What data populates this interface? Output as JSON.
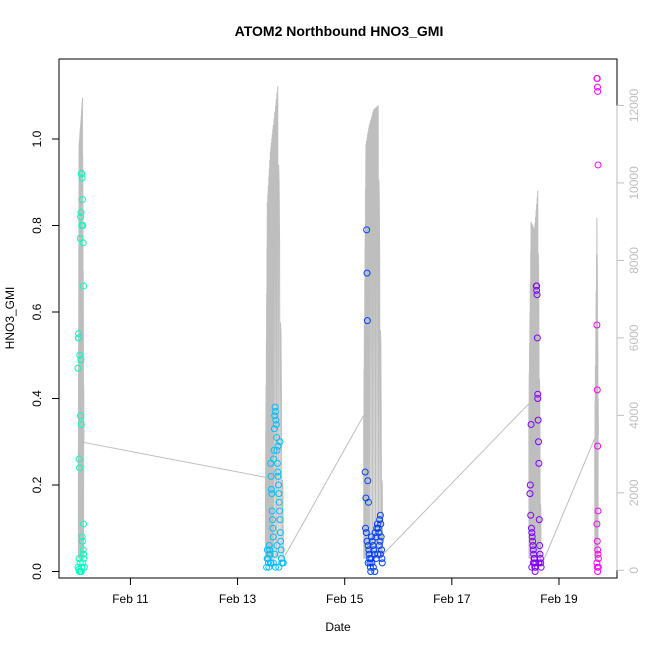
{
  "chart_data": {
    "type": "scatter",
    "title": "ATOM2 Northbound HNO3_GMI",
    "xlabel": "Date",
    "ylabel": "HNO3_GMI",
    "x_axis": {
      "type": "date",
      "ticks": [
        "Feb 11",
        "Feb 13",
        "Feb 15",
        "Feb 17",
        "Feb 19"
      ],
      "range": [
        "2017-02-09T16:00",
        "2017-02-20T02:00"
      ]
    },
    "y_axis_left": {
      "ticks": [
        "0.0",
        "0.2",
        "0.4",
        "0.6",
        "0.8",
        "1.0"
      ],
      "range": [
        -0.015,
        1.185
      ]
    },
    "y_axis_right": {
      "ticks": [
        "0",
        "2000",
        "4000",
        "6000",
        "8000",
        "10000",
        "12000"
      ],
      "range": [
        -200,
        13200
      ],
      "color": "#bebebe"
    },
    "altitude_line_color": "#bebebe",
    "series": [
      {
        "color": "#00FFBF",
        "points": [
          [
            "2017-02-10T00:30",
            0.47
          ],
          [
            "2017-02-10T00:40",
            0.54
          ],
          [
            "2017-02-10T00:45",
            0.55
          ],
          [
            "2017-02-10T00:50",
            0.54
          ],
          [
            "2017-02-10T01:00",
            0.26
          ],
          [
            "2017-02-10T01:10",
            0.24
          ],
          [
            "2017-02-10T01:20",
            0.5
          ],
          [
            "2017-02-10T01:30",
            0.77
          ],
          [
            "2017-02-10T01:40",
            0.82
          ],
          [
            "2017-02-10T01:50",
            0.83
          ],
          [
            "2017-02-10T02:00",
            0.92
          ],
          [
            "2017-02-10T02:10",
            0.92
          ],
          [
            "2017-02-10T02:20",
            0.91
          ],
          [
            "2017-02-10T02:30",
            0.86
          ],
          [
            "2017-02-10T02:10",
            0.8
          ],
          [
            "2017-02-10T02:40",
            0.8
          ],
          [
            "2017-02-10T02:50",
            0.76
          ],
          [
            "2017-02-10T03:00",
            0.66
          ],
          [
            "2017-02-10T01:50",
            0.49
          ],
          [
            "2017-02-10T01:40",
            0.36
          ],
          [
            "2017-02-10T02:00",
            0.34
          ],
          [
            "2017-02-10T03:00",
            0.11
          ],
          [
            "2017-02-10T02:20",
            0.08
          ],
          [
            "2017-02-10T02:30",
            0.07
          ],
          [
            "2017-02-10T02:50",
            0.05
          ],
          [
            "2017-02-10T03:00",
            0.04
          ],
          [
            "2017-02-10T03:10",
            0.03
          ],
          [
            "2017-02-10T01:00",
            0.03
          ],
          [
            "2017-02-10T01:30",
            0.02
          ],
          [
            "2017-02-10T00:30",
            0.01
          ],
          [
            "2017-02-10T00:50",
            0.005
          ],
          [
            "2017-02-10T01:10",
            0.0
          ],
          [
            "2017-02-10T01:20",
            0.0
          ],
          [
            "2017-02-10T01:40",
            0.0
          ],
          [
            "2017-02-10T02:00",
            0.0
          ],
          [
            "2017-02-10T02:10",
            0.01
          ],
          [
            "2017-02-10T02:40",
            0.02
          ],
          [
            "2017-02-10T03:20",
            0.01
          ]
        ]
      },
      {
        "color": "#00BFFF",
        "points": [
          [
            "2017-02-13T13:00",
            0.01
          ],
          [
            "2017-02-13T13:15",
            0.03
          ],
          [
            "2017-02-13T13:20",
            0.05
          ],
          [
            "2017-02-13T13:40",
            0.03
          ],
          [
            "2017-02-13T13:50",
            0.02
          ],
          [
            "2017-02-13T14:00",
            0.01
          ],
          [
            "2017-02-13T14:10",
            0.06
          ],
          [
            "2017-02-13T14:20",
            0.05
          ],
          [
            "2017-02-13T14:30",
            0.04
          ],
          [
            "2017-02-13T14:40",
            0.02
          ],
          [
            "2017-02-13T14:50",
            0.25
          ],
          [
            "2017-02-13T15:00",
            0.22
          ],
          [
            "2017-02-13T15:10",
            0.19
          ],
          [
            "2017-02-13T15:20",
            0.18
          ],
          [
            "2017-02-13T15:30",
            0.14
          ],
          [
            "2017-02-13T15:40",
            0.12
          ],
          [
            "2017-02-13T15:50",
            0.1
          ],
          [
            "2017-02-13T16:00",
            0.08
          ],
          [
            "2017-02-13T16:10",
            0.26
          ],
          [
            "2017-02-13T16:20",
            0.28
          ],
          [
            "2017-02-13T16:30",
            0.33
          ],
          [
            "2017-02-13T16:40",
            0.36
          ],
          [
            "2017-02-13T16:50",
            0.38
          ],
          [
            "2017-02-13T17:00",
            0.37
          ],
          [
            "2017-02-13T17:10",
            0.35
          ],
          [
            "2017-02-13T17:20",
            0.34
          ],
          [
            "2017-02-13T17:30",
            0.31
          ],
          [
            "2017-02-13T17:40",
            0.28
          ],
          [
            "2017-02-13T17:50",
            0.25
          ],
          [
            "2017-02-13T18:00",
            0.23
          ],
          [
            "2017-02-13T18:10",
            0.22
          ],
          [
            "2017-02-13T18:20",
            0.2
          ],
          [
            "2017-02-13T18:30",
            0.18
          ],
          [
            "2017-02-13T18:40",
            0.16
          ],
          [
            "2017-02-13T18:50",
            0.14
          ],
          [
            "2017-02-13T19:00",
            0.12
          ],
          [
            "2017-02-13T19:10",
            0.09
          ],
          [
            "2017-02-13T19:20",
            0.07
          ],
          [
            "2017-02-13T19:30",
            0.05
          ],
          [
            "2017-02-13T19:40",
            0.03
          ],
          [
            "2017-02-13T19:50",
            0.02
          ],
          [
            "2017-02-13T20:00",
            0.02
          ],
          [
            "2017-02-13T18:30",
            0.01
          ],
          [
            "2017-02-13T17:00",
            0.01
          ],
          [
            "2017-02-13T16:00",
            0.02
          ],
          [
            "2017-02-13T20:30",
            0.02
          ],
          [
            "2017-02-13T15:00",
            0.02
          ],
          [
            "2017-02-13T16:40",
            0.04
          ],
          [
            "2017-02-13T17:40",
            0.06
          ],
          [
            "2017-02-13T18:10",
            0.29
          ],
          [
            "2017-02-13T19:00",
            0.3
          ]
        ]
      },
      {
        "color": "#0040FF",
        "points": [
          [
            "2017-02-15T09:10",
            0.23
          ],
          [
            "2017-02-15T09:30",
            0.17
          ],
          [
            "2017-02-15T09:50",
            0.79
          ],
          [
            "2017-02-15T10:00",
            0.69
          ],
          [
            "2017-02-15T10:10",
            0.58
          ],
          [
            "2017-02-15T10:20",
            0.21
          ],
          [
            "2017-02-15T10:40",
            0.16
          ],
          [
            "2017-02-15T09:20",
            0.1
          ],
          [
            "2017-02-15T09:40",
            0.09
          ],
          [
            "2017-02-15T10:00",
            0.07
          ],
          [
            "2017-02-15T10:30",
            0.06
          ],
          [
            "2017-02-15T10:50",
            0.05
          ],
          [
            "2017-02-15T11:00",
            0.04
          ],
          [
            "2017-02-15T11:10",
            0.03
          ],
          [
            "2017-02-15T11:20",
            0.02
          ],
          [
            "2017-02-15T11:30",
            0.01
          ],
          [
            "2017-02-15T11:40",
            0.0
          ],
          [
            "2017-02-15T12:00",
            0.08
          ],
          [
            "2017-02-15T12:20",
            0.07
          ],
          [
            "2017-02-15T12:40",
            0.06
          ],
          [
            "2017-02-15T13:00",
            0.05
          ],
          [
            "2017-02-15T13:20",
            0.04
          ],
          [
            "2017-02-15T13:40",
            0.09
          ],
          [
            "2017-02-15T14:00",
            0.08
          ],
          [
            "2017-02-15T14:20",
            0.1
          ],
          [
            "2017-02-15T14:40",
            0.11
          ],
          [
            "2017-02-15T15:00",
            0.1
          ],
          [
            "2017-02-15T15:20",
            0.09
          ],
          [
            "2017-02-15T15:40",
            0.12
          ],
          [
            "2017-02-15T16:00",
            0.13
          ],
          [
            "2017-02-15T16:10",
            0.11
          ],
          [
            "2017-02-15T16:20",
            0.08
          ],
          [
            "2017-02-15T16:30",
            0.05
          ],
          [
            "2017-02-15T16:40",
            0.03
          ],
          [
            "2017-02-15T16:50",
            0.02
          ],
          [
            "2017-02-15T12:10",
            0.02
          ],
          [
            "2017-02-15T12:50",
            0.01
          ],
          [
            "2017-02-15T13:30",
            0.0
          ],
          [
            "2017-02-15T14:10",
            0.03
          ],
          [
            "2017-02-15T14:50",
            0.04
          ],
          [
            "2017-02-15T15:30",
            0.06
          ],
          [
            "2017-02-15T15:50",
            0.07
          ],
          [
            "2017-02-15T16:00",
            0.04
          ],
          [
            "2017-02-15T10:30",
            0.02
          ],
          [
            "2017-02-15T11:50",
            0.03
          ]
        ]
      },
      {
        "color": "#8000FF",
        "points": [
          [
            "2017-02-18T11:00",
            0.18
          ],
          [
            "2017-02-18T11:10",
            0.2
          ],
          [
            "2017-02-18T11:20",
            0.13
          ],
          [
            "2017-02-18T11:30",
            0.34
          ],
          [
            "2017-02-18T11:40",
            0.1
          ],
          [
            "2017-02-18T11:50",
            0.09
          ],
          [
            "2017-02-18T12:00",
            0.08
          ],
          [
            "2017-02-18T12:10",
            0.07
          ],
          [
            "2017-02-18T12:20",
            0.06
          ],
          [
            "2017-02-18T12:30",
            0.05
          ],
          [
            "2017-02-18T12:40",
            0.04
          ],
          [
            "2017-02-18T12:50",
            0.03
          ],
          [
            "2017-02-18T13:00",
            0.02
          ],
          [
            "2017-02-18T13:10",
            0.01
          ],
          [
            "2017-02-18T13:20",
            0.0
          ],
          [
            "2017-02-18T13:30",
            0.01
          ],
          [
            "2017-02-18T13:40",
            0.02
          ],
          [
            "2017-02-18T13:50",
            0.66
          ],
          [
            "2017-02-18T14:00",
            0.66
          ],
          [
            "2017-02-18T14:10",
            0.64
          ],
          [
            "2017-02-18T14:20",
            0.54
          ],
          [
            "2017-02-18T14:30",
            0.41
          ],
          [
            "2017-02-18T14:40",
            0.35
          ],
          [
            "2017-02-18T14:50",
            0.3
          ],
          [
            "2017-02-18T15:00",
            0.25
          ],
          [
            "2017-02-18T15:10",
            0.12
          ],
          [
            "2017-02-18T15:20",
            0.06
          ],
          [
            "2017-02-18T15:30",
            0.04
          ],
          [
            "2017-02-18T15:40",
            0.03
          ],
          [
            "2017-02-18T15:50",
            0.02
          ],
          [
            "2017-02-18T16:00",
            0.01
          ],
          [
            "2017-02-18T14:00",
            0.65
          ],
          [
            "2017-02-18T14:30",
            0.4
          ],
          [
            "2017-02-18T15:00",
            0.02
          ],
          [
            "2017-02-18T13:00",
            0.03
          ],
          [
            "2017-02-18T12:30",
            0.02
          ],
          [
            "2017-02-18T11:50",
            0.01
          ]
        ]
      },
      {
        "color": "#FF00FF",
        "points": [
          [
            "2017-02-19T17:00",
            1.14
          ],
          [
            "2017-02-19T17:10",
            1.14
          ],
          [
            "2017-02-19T17:15",
            1.12
          ],
          [
            "2017-02-19T17:20",
            1.11
          ],
          [
            "2017-02-19T17:30",
            0.94
          ],
          [
            "2017-02-19T17:00",
            0.57
          ],
          [
            "2017-02-19T17:10",
            0.42
          ],
          [
            "2017-02-19T17:20",
            0.29
          ],
          [
            "2017-02-19T17:30",
            0.14
          ],
          [
            "2017-02-19T17:00",
            0.11
          ],
          [
            "2017-02-19T17:10",
            0.07
          ],
          [
            "2017-02-19T17:20",
            0.05
          ],
          [
            "2017-02-19T17:30",
            0.04
          ],
          [
            "2017-02-19T17:40",
            0.03
          ],
          [
            "2017-02-19T17:00",
            0.02
          ],
          [
            "2017-02-19T17:10",
            0.01
          ],
          [
            "2017-02-19T17:20",
            0.0
          ],
          [
            "2017-02-19T17:40",
            0.01
          ]
        ]
      }
    ],
    "altitude_segments": [
      [
        [
          "2017-02-10T00:40",
          3200
        ],
        [
          "2017-02-10T01:00",
          11000
        ],
        [
          "2017-02-10T01:40",
          11500
        ],
        [
          "2017-02-10T02:30",
          12200
        ],
        [
          "2017-02-10T03:10",
          3300
        ]
      ],
      [
        [
          "2017-02-13T12:30",
          2400
        ],
        [
          "2017-02-13T13:20",
          9500
        ],
        [
          "2017-02-13T14:40",
          10800
        ],
        [
          "2017-02-13T16:00",
          11500
        ],
        [
          "2017-02-13T18:00",
          12500
        ],
        [
          "2017-02-13T20:30",
          300
        ]
      ],
      [
        [
          "2017-02-15T08:30",
          4000
        ],
        [
          "2017-02-15T09:30",
          11000
        ],
        [
          "2017-02-15T11:00",
          11500
        ],
        [
          "2017-02-15T13:00",
          11900
        ],
        [
          "2017-02-15T15:00",
          12000
        ],
        [
          "2017-02-15T17:00",
          400
        ]
      ],
      [
        [
          "2017-02-18T10:30",
          4300
        ],
        [
          "2017-02-18T11:30",
          9000
        ],
        [
          "2017-02-18T13:00",
          8800
        ],
        [
          "2017-02-18T14:30",
          9800
        ],
        [
          "2017-02-18T16:00",
          100
        ]
      ],
      [
        [
          "2017-02-19T16:00",
          3400
        ],
        [
          "2017-02-19T17:00",
          9100
        ],
        [
          "2017-02-19T17:40",
          3500
        ]
      ]
    ],
    "altitude_connectors": [
      [
        [
          "2017-02-10T03:10",
          3300
        ],
        [
          "2017-02-13T12:30",
          2400
        ]
      ],
      [
        [
          "2017-02-13T20:30",
          300
        ],
        [
          "2017-02-15T08:30",
          4000
        ]
      ],
      [
        [
          "2017-02-15T17:00",
          400
        ],
        [
          "2017-02-18T10:30",
          4300
        ]
      ],
      [
        [
          "2017-02-18T16:00",
          100
        ],
        [
          "2017-02-19T16:00",
          3400
        ]
      ]
    ]
  }
}
